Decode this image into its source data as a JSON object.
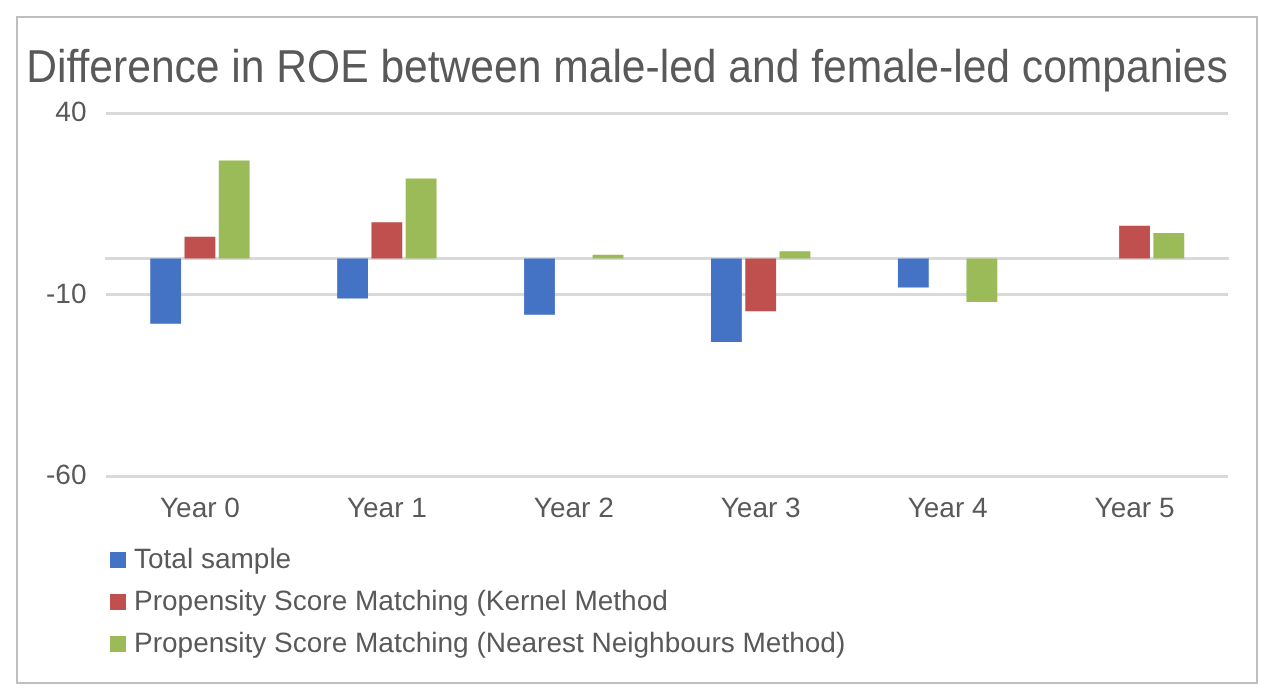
{
  "chart_data": {
    "type": "bar",
    "title": "Difference in ROE between male-led and female-led companies",
    "categories": [
      "Year 0",
      "Year 1",
      "Year 2",
      "Year 3",
      "Year 4",
      "Year 5"
    ],
    "series": [
      {
        "name": "Total sample",
        "color": "#4472c4",
        "values": [
          -18,
          -11,
          -15.5,
          -23,
          -8,
          null
        ]
      },
      {
        "name": "Propensity Score Matching (Kernel Method",
        "color": "#c0504d",
        "values": [
          6,
          10,
          null,
          -14.5,
          null,
          9
        ]
      },
      {
        "name": "Propensity Score Matching (Nearest Neighbours Method)",
        "color": "#9bbb59",
        "values": [
          27,
          22,
          1,
          2,
          -12,
          7
        ]
      }
    ],
    "ylim": [
      -60,
      40
    ],
    "yticks": [
      -60,
      -10,
      40
    ],
    "grid": "y",
    "legend": "bottom"
  }
}
